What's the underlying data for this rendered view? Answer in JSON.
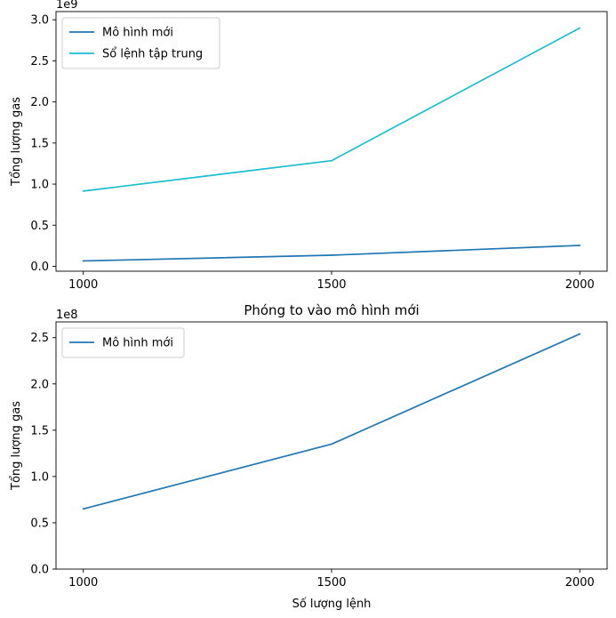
{
  "chart_data": [
    {
      "type": "line",
      "title": "",
      "xlabel": "",
      "ylabel": "Tổng lượng gas",
      "offset_label": "1e9",
      "x": [
        1000,
        1500,
        2000
      ],
      "xticks": [
        "1000",
        "1500",
        "2000"
      ],
      "yticks": [
        "0.0",
        "0.5",
        "1.0",
        "1.5",
        "2.0",
        "2.5",
        "3.0"
      ],
      "ylim": [
        -60000000,
        3100000000
      ],
      "xlim": [
        945,
        2055
      ],
      "legend": "top-left",
      "grid": false,
      "series": [
        {
          "name": "Mô hình mới",
          "color": "#1f77b4",
          "values": [
            65000000,
            135000000,
            254000000
          ]
        },
        {
          "name": "Sổ lệnh tập trung",
          "color": "#17becf",
          "values": [
            915000000,
            1285000000,
            2900000000
          ]
        }
      ]
    },
    {
      "type": "line",
      "title": "Phóng to vào mô hình mới",
      "xlabel": "Số lượng lệnh",
      "ylabel": "Tổng lượng gas",
      "offset_label": "1e8",
      "x": [
        1000,
        1500,
        2000
      ],
      "xticks": [
        "1000",
        "1500",
        "2000"
      ],
      "yticks": [
        "0.0",
        "0.5",
        "1.0",
        "1.5",
        "2.0",
        "2.5"
      ],
      "ylim": [
        0,
        267000000
      ],
      "xlim": [
        945,
        2055
      ],
      "legend": "top-left",
      "grid": false,
      "series": [
        {
          "name": "Mô hình mới",
          "color": "#1f77b4",
          "values": [
            65000000,
            135000000,
            254000000
          ]
        }
      ]
    }
  ]
}
